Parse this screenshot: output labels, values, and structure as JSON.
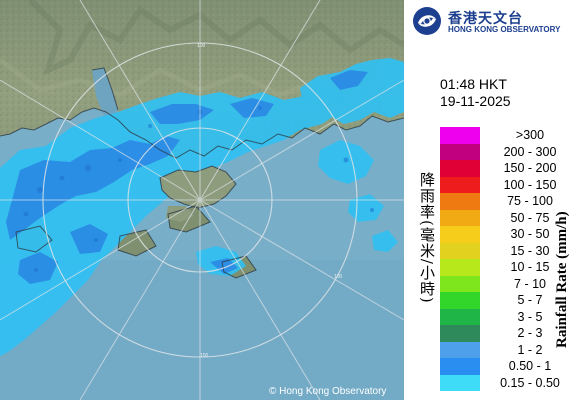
{
  "map": {
    "ring_labels": [
      "100",
      "100",
      "100"
    ],
    "copyright": "© Hong Kong Observatory",
    "colors": {
      "sea": "#7fb3cf",
      "land": "#8a9a7a",
      "rain_light": "#29b9f0",
      "rain_medium": "#2f8fe6",
      "ring": "#d8dde0"
    }
  },
  "header": {
    "logo_icon": "hko-logo-icon",
    "org_name_zh": "香港天文台",
    "org_name_en": "HONG KONG OBSERVATORY"
  },
  "timestamp": {
    "time": "01:48 HKT",
    "date": "19-11-2025"
  },
  "legend": {
    "title_zh": "降雨率(毫米/小時)",
    "title_en": "Rainfall Rate (mm/h)",
    "items": [
      {
        "label": ">300",
        "color": "#ee00ee"
      },
      {
        "label": "200 - 300",
        "color": "#c0007e"
      },
      {
        "label": "150 - 200",
        "color": "#e00036"
      },
      {
        "label": "100 - 150",
        "color": "#ee1c1c"
      },
      {
        "label": "75 - 100",
        "color": "#f07a12"
      },
      {
        "label": "50 - 75",
        "color": "#f1aa13"
      },
      {
        "label": "30 - 50",
        "color": "#f6cd1a"
      },
      {
        "label": "15 - 30",
        "color": "#e2d11e"
      },
      {
        "label": "10 - 15",
        "color": "#b7e81c"
      },
      {
        "label": "7 - 10",
        "color": "#7de61c"
      },
      {
        "label": "5 - 7",
        "color": "#32d52a"
      },
      {
        "label": "3 - 5",
        "color": "#1fb547"
      },
      {
        "label": "2 - 3",
        "color": "#2e8a5a"
      },
      {
        "label": "1 - 2",
        "color": "#4ea0ea"
      },
      {
        "label": "0.50 - 1",
        "color": "#2a8ef0"
      },
      {
        "label": "0.15 - 0.50",
        "color": "#3fdcf8"
      }
    ]
  }
}
